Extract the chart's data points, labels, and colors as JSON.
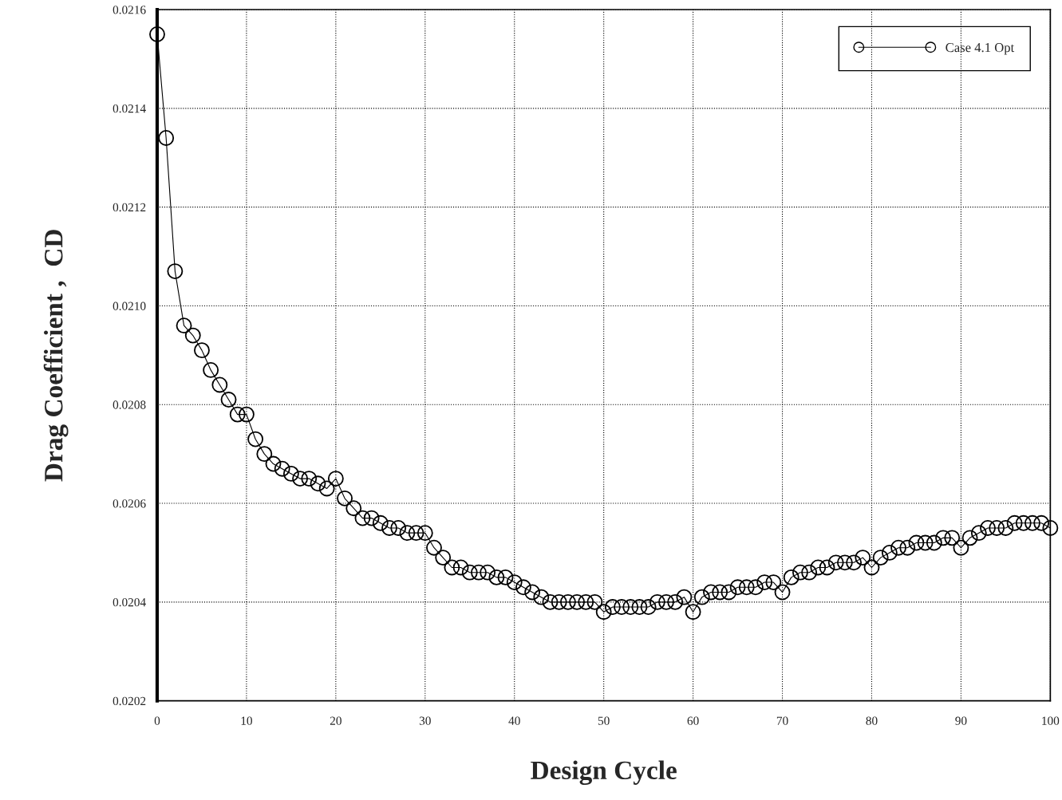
{
  "chart_data": {
    "type": "line",
    "xlabel": "Design Cycle",
    "ylabel": "Drag Coefficient ,  CD",
    "x": [
      0,
      1,
      2,
      3,
      4,
      5,
      6,
      7,
      8,
      9,
      10,
      11,
      12,
      13,
      14,
      15,
      16,
      17,
      18,
      19,
      20,
      21,
      22,
      23,
      24,
      25,
      26,
      27,
      28,
      29,
      30,
      31,
      32,
      33,
      34,
      35,
      36,
      37,
      38,
      39,
      40,
      41,
      42,
      43,
      44,
      45,
      46,
      47,
      48,
      49,
      50,
      51,
      52,
      53,
      54,
      55,
      56,
      57,
      58,
      59,
      60,
      61,
      62,
      63,
      64,
      65,
      66,
      67,
      68,
      69,
      70,
      71,
      72,
      73,
      74,
      75,
      76,
      77,
      78,
      79,
      80,
      81,
      82,
      83,
      84,
      85,
      86,
      87,
      88,
      89,
      90,
      91,
      92,
      93,
      94,
      95,
      96,
      97,
      98,
      99,
      100
    ],
    "series": [
      {
        "name": "Case 4.1 Opt",
        "color": "#000000",
        "values": [
          0.02155,
          0.02134,
          0.02107,
          0.02096,
          0.02094,
          0.02091,
          0.02087,
          0.02084,
          0.02081,
          0.02078,
          0.02078,
          0.02073,
          0.0207,
          0.02068,
          0.02067,
          0.02066,
          0.02065,
          0.02065,
          0.02064,
          0.02063,
          0.02065,
          0.02061,
          0.02059,
          0.02057,
          0.02057,
          0.02056,
          0.02055,
          0.02055,
          0.02054,
          0.02054,
          0.02054,
          0.02051,
          0.02049,
          0.02047,
          0.02047,
          0.02046,
          0.02046,
          0.02046,
          0.02045,
          0.02045,
          0.02044,
          0.02043,
          0.02042,
          0.02041,
          0.0204,
          0.0204,
          0.0204,
          0.0204,
          0.0204,
          0.0204,
          0.02038,
          0.02039,
          0.02039,
          0.02039,
          0.02039,
          0.02039,
          0.0204,
          0.0204,
          0.0204,
          0.02041,
          0.02038,
          0.02041,
          0.02042,
          0.02042,
          0.02042,
          0.02043,
          0.02043,
          0.02043,
          0.02044,
          0.02044,
          0.02042,
          0.02045,
          0.02046,
          0.02046,
          0.02047,
          0.02047,
          0.02048,
          0.02048,
          0.02048,
          0.02049,
          0.02047,
          0.02049,
          0.0205,
          0.02051,
          0.02051,
          0.02052,
          0.02052,
          0.02052,
          0.02053,
          0.02053,
          0.02051,
          0.02053,
          0.02054,
          0.02055,
          0.02055,
          0.02055,
          0.02056,
          0.02056,
          0.02056,
          0.02056,
          0.02055
        ]
      }
    ],
    "xlim": [
      0,
      100
    ],
    "xticks": [
      0,
      10,
      20,
      30,
      40,
      50,
      60,
      70,
      80,
      90,
      100
    ],
    "ylim": [
      0.0202,
      0.0216
    ],
    "yticks": [
      0.0202,
      0.0204,
      0.0206,
      0.0208,
      {
        "value": 0.021,
        "label": "0.0210"
      },
      0.0212,
      0.0214,
      0.0216
    ],
    "grid": true,
    "legend": "top right",
    "marker": "circle",
    "line_style": "solid"
  }
}
